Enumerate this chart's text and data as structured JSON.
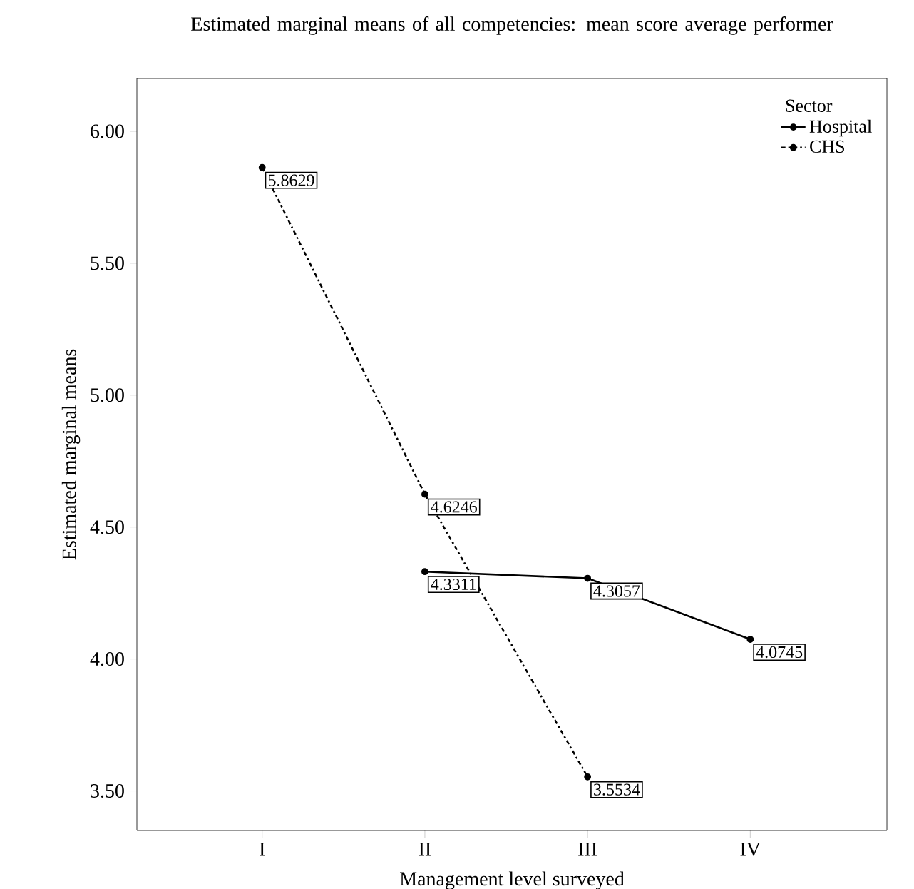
{
  "chart_data": {
    "type": "line",
    "title": "Estimated marginal means of all competencies: mean score average performer",
    "xlabel": "Management level surveyed",
    "ylabel": "Estimated marginal means",
    "legend_title": "Sector",
    "categories": [
      "I",
      "II",
      "III",
      "IV"
    ],
    "series": [
      {
        "name": "Hospital",
        "color": "#000000",
        "line_style": "solid",
        "values": [
          null,
          4.3311,
          4.3057,
          4.0745
        ]
      },
      {
        "name": "CHS",
        "color": "#000000",
        "line_style": "dashdot",
        "values": [
          5.8629,
          4.6246,
          3.5534,
          null
        ]
      }
    ],
    "ylim": [
      3.35,
      6.2
    ],
    "yticks": [
      {
        "value": 3.5,
        "label": "3.50"
      },
      {
        "value": 4.0,
        "label": "4.00"
      },
      {
        "value": 4.5,
        "label": "4.50"
      },
      {
        "value": 5.0,
        "label": "5.00"
      },
      {
        "value": 5.5,
        "label": "5.50"
      },
      {
        "value": 6.0,
        "label": "6.00"
      }
    ],
    "data_labels": true,
    "legend": "top right",
    "marker": "circle",
    "grid": false
  }
}
